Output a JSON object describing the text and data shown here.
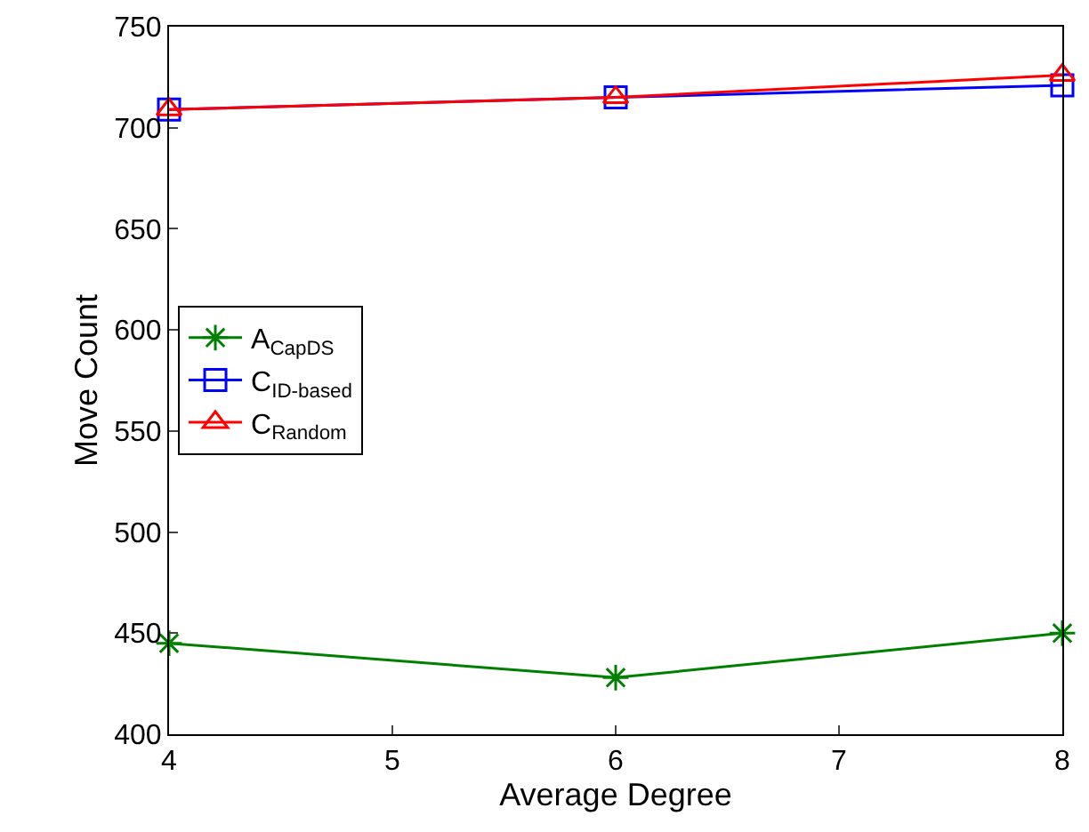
{
  "chart_data": {
    "type": "line",
    "xlabel": "Average Degree",
    "ylabel": "Move Count",
    "x": [
      4,
      6,
      8
    ],
    "series": [
      {
        "name": "A$_{CapDS}$",
        "color": "#008000",
        "marker": "cross",
        "values": [
          445,
          428,
          450
        ]
      },
      {
        "name": "C$_{ID-based}$",
        "color": "#0000ff",
        "marker": "square",
        "values": [
          709,
          715,
          721
        ]
      },
      {
        "name": "C$_{Random}$",
        "color": "#ff0000",
        "marker": "triangle",
        "values": [
          709,
          715,
          726
        ]
      }
    ],
    "xlim": [
      4,
      8
    ],
    "xticks": [
      4,
      5,
      6,
      7,
      8
    ],
    "ylim": [
      400,
      750
    ],
    "yticks": [
      400,
      450,
      500,
      550,
      600,
      650,
      700,
      750
    ],
    "legend": "left",
    "line_style": "solid"
  }
}
